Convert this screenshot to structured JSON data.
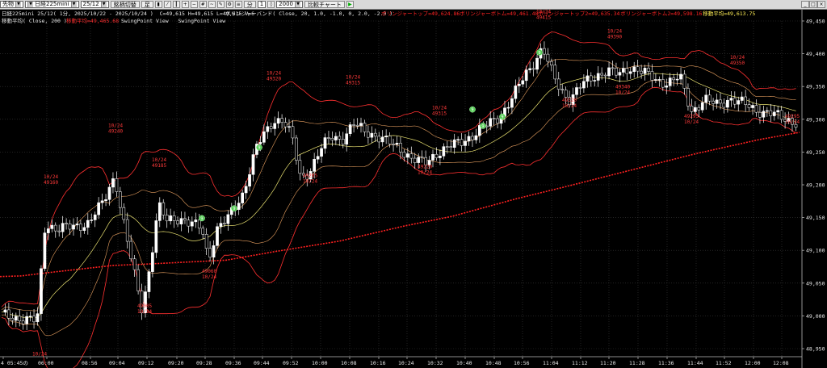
{
  "toolbar": {
    "product_select": "先物",
    "symbol_select": "日経225mini",
    "contract_select": "25/12",
    "btn_switch": "銘柄切替",
    "btn_chart": "足",
    "btn_min": "分",
    "period_value": "1",
    "count_value": "2000",
    "btn_compare": "比較チャート",
    "win_buttons": [
      "_",
      "□",
      "×"
    ]
  },
  "legend": {
    "line1_info": "日経225mini 25/12( 1分, 2025/10/22 - 2025/10/24 )  C=49,615 H=49,615 L=49,615 V=6",
    "line1_bb": "ボリンジャーバンド( Close, 20, 1.0, -1.0, 0, 2.0, -2.0 )",
    "line1_vals": [
      {
        "text": "ボリンジャートップ=49,624.86",
        "color": "#ff2222"
      },
      {
        "text": "ボリンジャーボトム=49,461.48",
        "color": "#ff2222"
      },
      {
        "text": "ボリンジャートップ2=49,635.34",
        "color": "#ff2222"
      },
      {
        "text": "ボリンジャーボトム2=49,598.16",
        "color": "#ff2222"
      },
      {
        "text": "移動平均=49,613.75",
        "color": "#ffee55"
      }
    ],
    "line2_ma": "移動平均( Close, 200 )",
    "line2_ma_val": "移動平均=49,465.68",
    "line2_views": "SwingPoint View   SwingPoint View"
  },
  "chart_data": {
    "type": "candlestick",
    "x_ticks": [
      "4 05:45の",
      "06:00",
      "08:56",
      "09:04",
      "09:12",
      "09:20",
      "09:28",
      "09:36",
      "09:44",
      "09:52",
      "10:00",
      "10:08",
      "10:16",
      "10:24",
      "10:32",
      "10:40",
      "10:48",
      "10:56",
      "11:04",
      "11:12",
      "11:20",
      "11:28",
      "11:36",
      "11:44",
      "11:52",
      "12:00",
      "12:08"
    ],
    "y_ticks": [
      49450,
      49400,
      49350,
      49300,
      49250,
      49200,
      49150,
      49100,
      49050,
      49000,
      48950
    ],
    "y_tick_labels": [
      "49,450",
      "49,400",
      "49,350",
      "49,300",
      "49,250",
      "49,200",
      "49,150",
      "49,100",
      "49,050",
      "49,000",
      "48,950"
    ],
    "ylim": [
      48940,
      49460
    ],
    "ma200_points": [
      [
        0,
        49060
      ],
      [
        26,
        49061
      ],
      [
        60,
        49066
      ],
      [
        140,
        49077
      ],
      [
        180,
        49079
      ],
      [
        230,
        49082
      ],
      [
        280,
        49085
      ],
      [
        340,
        49098
      ],
      [
        420,
        49114
      ],
      [
        500,
        49137
      ],
      [
        560,
        49152
      ],
      [
        640,
        49179
      ],
      [
        700,
        49197
      ],
      [
        780,
        49222
      ],
      [
        860,
        49247
      ],
      [
        940,
        49269
      ],
      [
        990,
        49280
      ]
    ],
    "annotations": [
      {
        "t": "10/24",
        "v": "49160",
        "x": 62,
        "price": 49210,
        "pos": "above"
      },
      {
        "t": "10/24",
        "v": "49240",
        "x": 142,
        "price": 49288,
        "pos": "above"
      },
      {
        "t": "10/24",
        "v": "49185",
        "x": 196,
        "price": 49236,
        "pos": "above"
      },
      {
        "t": "10/24",
        "v": "49320",
        "x": 338,
        "price": 49368,
        "pos": "above"
      },
      {
        "t": "10/24",
        "v": "49315",
        "x": 436,
        "price": 49362,
        "pos": "above"
      },
      {
        "t": "10/24",
        "v": "49315",
        "x": 543,
        "price": 49315,
        "pos": "above"
      },
      {
        "t": "10/24",
        "v": "49415",
        "x": 672,
        "price": 49462,
        "pos": "above"
      },
      {
        "t": "10/24",
        "v": "49390",
        "x": 760,
        "price": 49432,
        "pos": "above"
      },
      {
        "t": "10/24",
        "v": "49350",
        "x": 912,
        "price": 49392,
        "pos": "above"
      },
      {
        "t": "49005",
        "v": "10/24",
        "x": 178,
        "price": 49013,
        "pos": "below"
      },
      {
        "t": "49060",
        "v": "10/24",
        "x": 258,
        "price": 49066,
        "pos": "below"
      },
      {
        "t": "49205",
        "v": "10/24",
        "x": 383,
        "price": 49212,
        "pos": "below"
      },
      {
        "t": "49220",
        "v": "10/24",
        "x": 525,
        "price": 49225,
        "pos": "below"
      },
      {
        "t": "49320",
        "v": "10/24",
        "x": 704,
        "price": 49327,
        "pos": "below"
      },
      {
        "t": "49340",
        "v": "10/24",
        "x": 770,
        "price": 49347,
        "pos": "below"
      },
      {
        "t": "49295",
        "v": "10/24",
        "x": 855,
        "price": 49302,
        "pos": "below"
      },
      {
        "t": "49295",
        "v": "10/24",
        "x": 980,
        "price": 49302,
        "pos": "below"
      },
      {
        "t": "",
        "v": "10/24",
        "x": 48,
        "price": 48948,
        "pos": "below"
      }
    ],
    "markers": [
      {
        "x": 250,
        "price": 49149,
        "label": "9"
      },
      {
        "x": 290,
        "price": 49164,
        "label": "9"
      },
      {
        "x": 321,
        "price": 49257,
        "label": "9"
      },
      {
        "x": 585,
        "price": 49315,
        "label": "9"
      },
      {
        "x": 598,
        "price": 49290,
        "label": "9"
      },
      {
        "x": 622,
        "price": 49304,
        "label": "9"
      },
      {
        "x": 668,
        "price": 49402,
        "label": "9"
      }
    ],
    "colors": {
      "bb_outer": "#ff3030",
      "bb_inner": "#e8a060",
      "ma": "#e8e070",
      "ma200": "#ff2020",
      "up": "#ffffff",
      "down": "#000000",
      "grid": "#3a3a3a",
      "marker": "#55cc55",
      "annot": "#ff3a3a"
    }
  }
}
